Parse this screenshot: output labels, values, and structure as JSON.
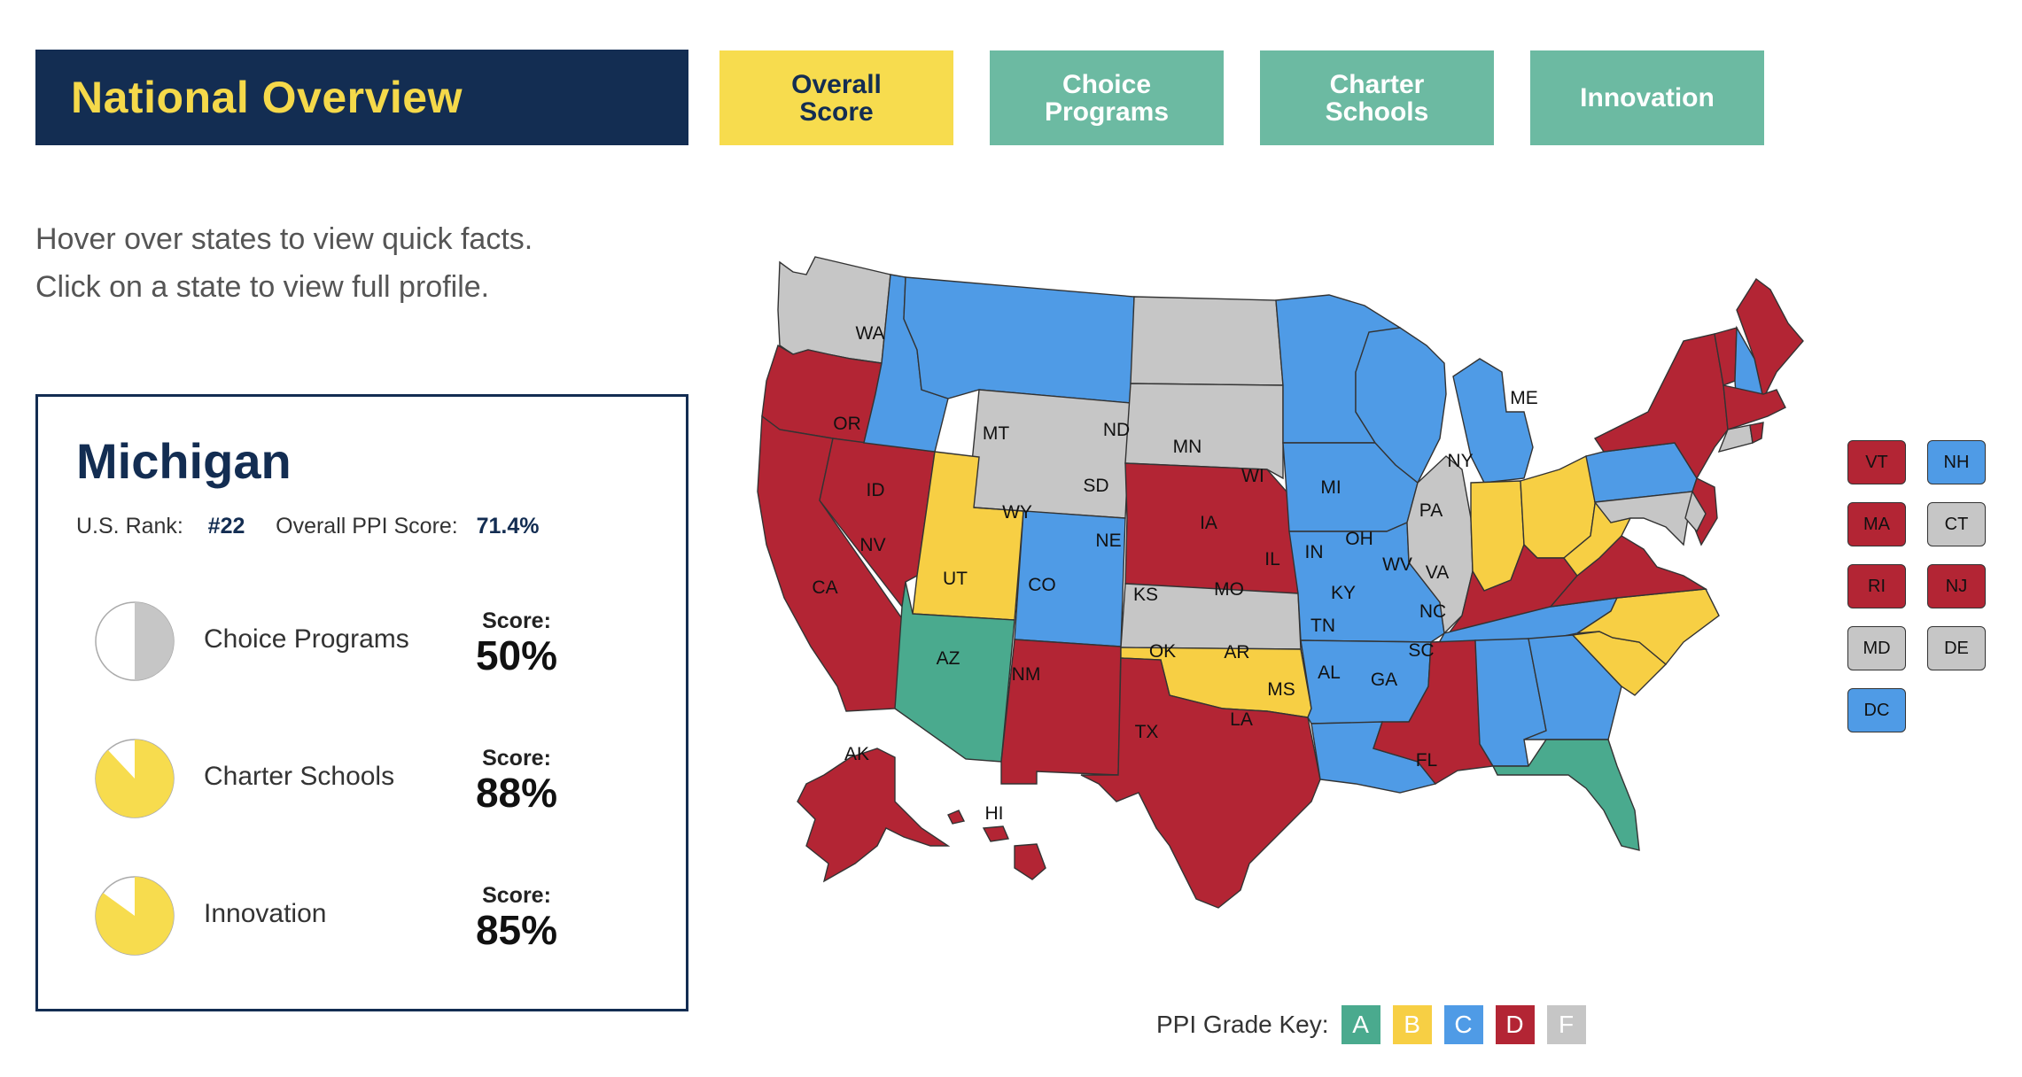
{
  "header": {
    "title": "National Overview"
  },
  "tabs": [
    {
      "label": "Overall\nScore",
      "active": true
    },
    {
      "label": "Choice\nPrograms",
      "active": false
    },
    {
      "label": "Charter\nSchools",
      "active": false
    },
    {
      "label": "Innovation",
      "active": false
    }
  ],
  "instructions": {
    "line1": "Hover over states to view quick facts.",
    "line2": "Click on a state to view full profile."
  },
  "profile": {
    "state": "Michigan",
    "rank_label": "U.S. Rank:",
    "rank_value": "#22",
    "ppi_label": "Overall PPI Score:",
    "ppi_value": "71.4%",
    "metrics": [
      {
        "label": "Choice Programs",
        "score_caption": "Score:",
        "score": "50%",
        "fraction": 0.5,
        "color": "#c6c6c6"
      },
      {
        "label": "Charter Schools",
        "score_caption": "Score:",
        "score": "88%",
        "fraction": 0.88,
        "color": "#f7dc4e"
      },
      {
        "label": "Innovation",
        "score_caption": "Score:",
        "score": "85%",
        "fraction": 0.85,
        "color": "#f7dc4e"
      }
    ]
  },
  "grade_colors": {
    "A": "#4aaa8e",
    "B": "#f7cf44",
    "C": "#4f9be6",
    "D": "#b32534",
    "F": "#c6c6c6"
  },
  "grade_key": {
    "label": "PPI Grade Key:",
    "grades": [
      "A",
      "B",
      "C",
      "D",
      "F"
    ]
  },
  "state_grades": {
    "WA": "F",
    "OR": "D",
    "CA": "D",
    "NV": "D",
    "ID": "C",
    "MT": "C",
    "WY": "F",
    "UT": "B",
    "AZ": "A",
    "CO": "C",
    "NM": "D",
    "ND": "F",
    "SD": "F",
    "NE": "D",
    "KS": "F",
    "OK": "B",
    "TX": "D",
    "MN": "C",
    "IA": "C",
    "MO": "C",
    "AR": "C",
    "LA": "C",
    "WI": "C",
    "IL": "F",
    "MS": "D",
    "MI": "C",
    "IN": "B",
    "OH": "B",
    "KY": "D",
    "TN": "C",
    "AL": "C",
    "GA": "C",
    "FL": "A",
    "SC": "B",
    "NC": "B",
    "VA": "D",
    "WV": "B",
    "PA": "C",
    "NY": "D",
    "ME": "D",
    "AK": "D",
    "HI": "D",
    "VT": "D",
    "NH": "C",
    "MA": "D",
    "RI": "D",
    "CT": "F",
    "NJ": "D",
    "MD": "F",
    "DE": "F",
    "DC": "C"
  },
  "small_states": [
    "VT",
    "NH",
    "MA",
    "CT",
    "RI",
    "NJ",
    "MD",
    "DE",
    "DC"
  ]
}
